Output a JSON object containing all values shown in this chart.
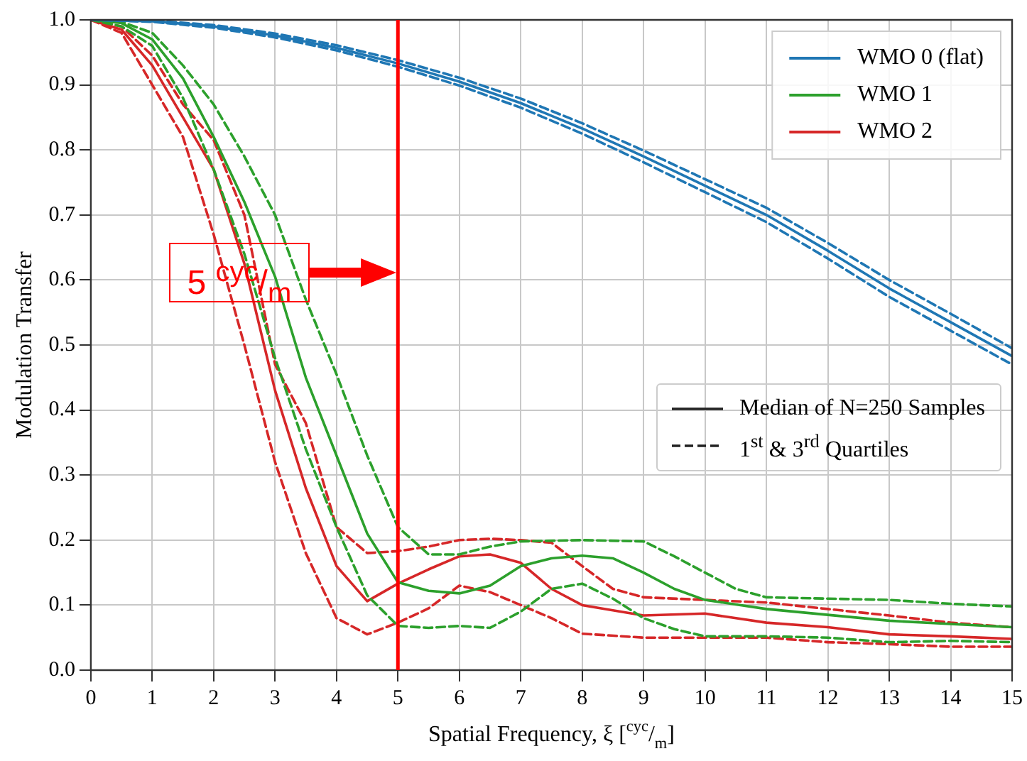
{
  "chart_data": {
    "type": "line",
    "xlabel": "Spatial Frequency, ξ [$^{cyc}$/$_{m}$]",
    "ylabel": "Modulation Transfer",
    "xlim": [
      0,
      15
    ],
    "xticks": [
      0,
      1,
      2,
      3,
      4,
      5,
      6,
      7,
      8,
      9,
      10,
      11,
      12,
      13,
      14,
      15
    ],
    "ylim": [
      0,
      1
    ],
    "yticks": [
      {
        "value": 0,
        "label": "0.0"
      },
      {
        "value": 0.1,
        "label": "0.1"
      },
      {
        "value": 0.2,
        "label": "0.2"
      },
      {
        "value": 0.3,
        "label": "0.3"
      },
      {
        "value": 0.4,
        "label": "0.4"
      },
      {
        "value": 0.5,
        "label": "0.5"
      },
      {
        "value": 0.6,
        "label": "0.6"
      },
      {
        "value": 0.7,
        "label": "0.7"
      },
      {
        "value": 0.8,
        "label": "0.8"
      },
      {
        "value": 0.9,
        "label": "0.9"
      },
      {
        "value": 1,
        "label": "1.0"
      }
    ],
    "grid": true,
    "legend": "top right",
    "marker": "none",
    "series": [
      {
        "name": "WMO 0 (flat)",
        "color": "#1f77b4",
        "line_style": "solid",
        "x": [
          0,
          1,
          2,
          3,
          4,
          5,
          6,
          7,
          8,
          9,
          10,
          11,
          12,
          13,
          14,
          15
        ],
        "values": [
          1.0,
          0.998,
          0.99,
          0.976,
          0.957,
          0.933,
          0.905,
          0.872,
          0.833,
          0.79,
          0.745,
          0.7,
          0.645,
          0.587,
          0.535,
          0.483
        ]
      },
      {
        "color": "#1f77b4",
        "line_style": "dashed",
        "x": [
          0,
          1,
          2,
          3,
          4,
          5,
          6,
          7,
          8,
          9,
          10,
          11,
          12,
          13,
          14,
          15
        ],
        "values": [
          1.0,
          0.999,
          0.992,
          0.979,
          0.961,
          0.938,
          0.911,
          0.879,
          0.841,
          0.799,
          0.755,
          0.711,
          0.657,
          0.6,
          0.548,
          0.495
        ]
      },
      {
        "color": "#1f77b4",
        "line_style": "dashed",
        "x": [
          0,
          1,
          2,
          3,
          4,
          5,
          6,
          7,
          8,
          9,
          10,
          11,
          12,
          13,
          14,
          15
        ],
        "values": [
          1.0,
          0.997,
          0.988,
          0.973,
          0.953,
          0.928,
          0.899,
          0.865,
          0.825,
          0.781,
          0.735,
          0.689,
          0.633,
          0.574,
          0.522,
          0.47
        ]
      },
      {
        "name": "WMO 1",
        "color": "#2ca02c",
        "line_style": "solid",
        "x": [
          0,
          0.5,
          1,
          1.5,
          2,
          2.5,
          3,
          3.5,
          4,
          4.5,
          5,
          5.5,
          6,
          6.5,
          7,
          7.5,
          8,
          8.5,
          9,
          9.5,
          10,
          11,
          12,
          13,
          14,
          15
        ],
        "values": [
          1.0,
          0.995,
          0.97,
          0.91,
          0.82,
          0.72,
          0.605,
          0.45,
          0.33,
          0.21,
          0.135,
          0.122,
          0.118,
          0.13,
          0.16,
          0.172,
          0.176,
          0.172,
          0.15,
          0.125,
          0.108,
          0.094,
          0.085,
          0.076,
          0.071,
          0.066
        ]
      },
      {
        "color": "#2ca02c",
        "line_style": "dashed",
        "x": [
          0,
          0.5,
          1,
          1.5,
          2,
          2.5,
          3,
          3.5,
          4,
          4.5,
          5,
          5.5,
          6,
          6.5,
          7,
          8,
          9,
          9.5,
          10,
          10.5,
          11,
          12,
          13,
          14,
          15
        ],
        "values": [
          1.0,
          0.997,
          0.98,
          0.93,
          0.87,
          0.79,
          0.7,
          0.57,
          0.455,
          0.33,
          0.22,
          0.178,
          0.178,
          0.19,
          0.198,
          0.2,
          0.198,
          0.175,
          0.15,
          0.125,
          0.112,
          0.11,
          0.108,
          0.102,
          0.098
        ]
      },
      {
        "color": "#2ca02c",
        "line_style": "dashed",
        "x": [
          0,
          0.5,
          1,
          1.5,
          2,
          2.5,
          3,
          3.5,
          4,
          4.5,
          5,
          5.5,
          6,
          6.5,
          7,
          7.5,
          8,
          8.5,
          9,
          9.5,
          10,
          11,
          12,
          13,
          14,
          15
        ],
        "values": [
          1.0,
          0.99,
          0.96,
          0.88,
          0.77,
          0.64,
          0.48,
          0.34,
          0.22,
          0.115,
          0.068,
          0.065,
          0.068,
          0.065,
          0.09,
          0.125,
          0.133,
          0.11,
          0.08,
          0.063,
          0.052,
          0.052,
          0.05,
          0.043,
          0.045,
          0.043
        ]
      },
      {
        "name": "WMO 2",
        "color": "#d62728",
        "line_style": "solid",
        "x": [
          0,
          0.5,
          1,
          1.5,
          2,
          2.5,
          3,
          3.5,
          4,
          4.5,
          5,
          5.5,
          6,
          6.5,
          7,
          7.5,
          8,
          9,
          10,
          11,
          12,
          13,
          14,
          15
        ],
        "values": [
          1.0,
          0.985,
          0.93,
          0.85,
          0.77,
          0.625,
          0.43,
          0.28,
          0.16,
          0.106,
          0.133,
          0.155,
          0.175,
          0.178,
          0.165,
          0.125,
          0.1,
          0.084,
          0.087,
          0.073,
          0.066,
          0.055,
          0.052,
          0.048
        ]
      },
      {
        "color": "#d62728",
        "line_style": "dashed",
        "x": [
          0,
          0.5,
          1,
          1.5,
          2,
          2.5,
          3,
          3.5,
          4,
          4.5,
          5,
          5.5,
          6,
          6.5,
          7,
          7.5,
          8,
          8.5,
          9,
          10,
          11,
          12,
          13,
          14,
          15
        ],
        "values": [
          1.0,
          0.99,
          0.945,
          0.87,
          0.815,
          0.7,
          0.47,
          0.38,
          0.22,
          0.18,
          0.183,
          0.19,
          0.2,
          0.202,
          0.2,
          0.196,
          0.16,
          0.125,
          0.112,
          0.108,
          0.104,
          0.094,
          0.084,
          0.073,
          0.066
        ]
      },
      {
        "color": "#d62728",
        "line_style": "dashed",
        "x": [
          0,
          0.5,
          1,
          1.5,
          2,
          2.5,
          3,
          3.5,
          4,
          4.5,
          5,
          5.5,
          6,
          6.5,
          7,
          7.5,
          8,
          9,
          10,
          11,
          12,
          13,
          14,
          15
        ],
        "values": [
          1.0,
          0.98,
          0.9,
          0.82,
          0.67,
          0.5,
          0.32,
          0.18,
          0.08,
          0.055,
          0.073,
          0.095,
          0.13,
          0.12,
          0.1,
          0.08,
          0.056,
          0.05,
          0.05,
          0.05,
          0.043,
          0.04,
          0.036,
          0.036
        ]
      }
    ],
    "ref_lines": [
      {
        "axis": "x",
        "value": 5,
        "color": "#ff0000",
        "label": "5 $^{cyc}$/$_{m}$"
      }
    ],
    "annotations": [
      "Median of N=250 Samples",
      "1$^{st}$ & 3$^{rd}$ Quartiles"
    ]
  }
}
